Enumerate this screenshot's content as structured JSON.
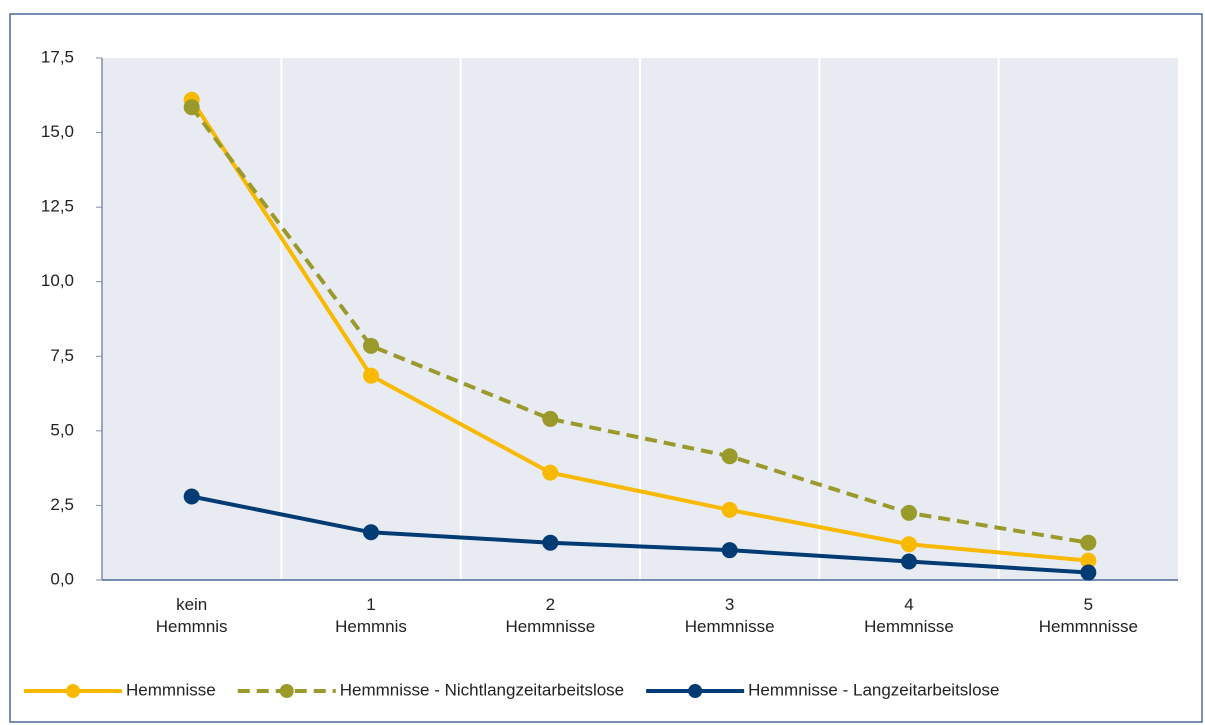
{
  "chart_data": {
    "type": "line",
    "categories": [
      "kein Hemmnis",
      "1 Hemmnis",
      "2 Hemmnisse",
      "3 Hemmnisse",
      "4 Hemmnisse",
      "5 Hemmnnisse"
    ],
    "series": [
      {
        "name": "Hemmnisse",
        "color": "#f8b900",
        "dashed": false,
        "values": [
          16.1,
          6.85,
          3.6,
          2.35,
          1.2,
          0.65
        ]
      },
      {
        "name": "Hemmnisse - Nichtlangzeitarbeitslose",
        "color": "#9a9a2c",
        "dashed": true,
        "values": [
          15.85,
          7.85,
          5.4,
          4.15,
          2.25,
          1.25
        ]
      },
      {
        "name": "Hemmnisse - Langzeitarbeitslose",
        "color": "#003b73",
        "dashed": false,
        "values": [
          2.8,
          1.6,
          1.25,
          1.0,
          0.62,
          0.25
        ]
      }
    ],
    "ylim": [
      0,
      17.5
    ],
    "yticks": [
      {
        "value": 0,
        "label": "0,0"
      },
      {
        "value": 2.5,
        "label": "2,5"
      },
      {
        "value": 5,
        "label": "5,0"
      },
      {
        "value": 7.5,
        "label": "7,5"
      },
      {
        "value": 10,
        "label": "10,0"
      },
      {
        "value": 12.5,
        "label": "12,5"
      },
      {
        "value": 15,
        "label": "15,0"
      },
      {
        "value": 17.5,
        "label": "17,5"
      }
    ],
    "grid": false,
    "legend": "bottom"
  }
}
